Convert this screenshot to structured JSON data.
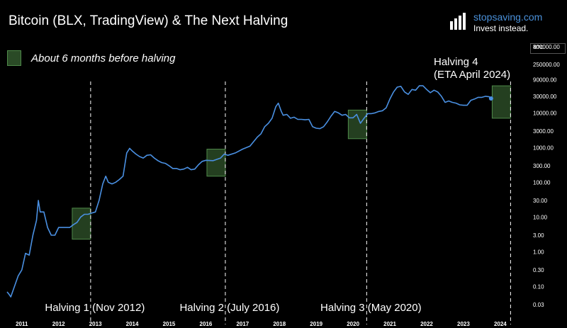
{
  "header": {
    "title": "Bitcoin (BLX, TradingView) & The Next Halving",
    "brand_name": "stopsaving.com",
    "brand_tagline": "Invest instead."
  },
  "legend": {
    "label": "About 6 months before halving"
  },
  "chart_data": {
    "type": "line",
    "title": "Bitcoin (BLX, TradingView) & The Next Halving",
    "y_scale": "log",
    "ylim": [
      0.03,
      800000
    ],
    "xlim": [
      2010.6,
      2024.6
    ],
    "unit_label": "BTC",
    "y_ticks": [
      {
        "value": 800000,
        "label": "800000.00"
      },
      {
        "value": 250000,
        "label": "250000.00"
      },
      {
        "value": 90000,
        "label": "90000.00"
      },
      {
        "value": 30000,
        "label": "30000.00"
      },
      {
        "value": 10000,
        "label": "10000.00"
      },
      {
        "value": 3000,
        "label": "3000.00"
      },
      {
        "value": 1000,
        "label": "1000.00"
      },
      {
        "value": 300,
        "label": "300.00"
      },
      {
        "value": 100,
        "label": "100.00"
      },
      {
        "value": 30,
        "label": "30.00"
      },
      {
        "value": 10,
        "label": "10.00"
      },
      {
        "value": 3,
        "label": "3.00"
      },
      {
        "value": 1,
        "label": "1.00"
      },
      {
        "value": 0.3,
        "label": "0.30"
      },
      {
        "value": 0.1,
        "label": "0.10"
      },
      {
        "value": 0.03,
        "label": "0.03"
      }
    ],
    "x_ticks": [
      {
        "value": 2011,
        "label": "2011"
      },
      {
        "value": 2012,
        "label": "2012"
      },
      {
        "value": 2013,
        "label": "2013"
      },
      {
        "value": 2014,
        "label": "2014"
      },
      {
        "value": 2015,
        "label": "2015"
      },
      {
        "value": 2016,
        "label": "2016"
      },
      {
        "value": 2017,
        "label": "2017"
      },
      {
        "value": 2018,
        "label": "2018"
      },
      {
        "value": 2019,
        "label": "2019"
      },
      {
        "value": 2020,
        "label": "2020"
      },
      {
        "value": 2021,
        "label": "2021"
      },
      {
        "value": 2022,
        "label": "2022"
      },
      {
        "value": 2023,
        "label": "2023"
      },
      {
        "value": 2024,
        "label": "2024"
      }
    ],
    "series": [
      {
        "x": [
          2010.6,
          2010.65,
          2010.7,
          2010.8,
          2010.9,
          2011.0,
          2011.1,
          2011.2,
          2011.3,
          2011.4,
          2011.45,
          2011.5,
          2011.6,
          2011.7,
          2011.8,
          2011.9,
          2012.0,
          2012.1,
          2012.2,
          2012.3,
          2012.4,
          2012.5,
          2012.6,
          2012.7,
          2012.8,
          2012.9,
          2013.0,
          2013.1,
          2013.2,
          2013.28,
          2013.35,
          2013.45,
          2013.55,
          2013.65,
          2013.75,
          2013.85,
          2013.93,
          2014.0,
          2014.1,
          2014.2,
          2014.3,
          2014.4,
          2014.5,
          2014.6,
          2014.7,
          2014.8,
          2014.9,
          2015.0,
          2015.1,
          2015.2,
          2015.3,
          2015.4,
          2015.5,
          2015.6,
          2015.7,
          2015.8,
          2015.9,
          2016.0,
          2016.2,
          2016.4,
          2016.5,
          2016.6,
          2016.8,
          2017.0,
          2017.2,
          2017.4,
          2017.5,
          2017.6,
          2017.7,
          2017.8,
          2017.9,
          2017.97,
          2018.05,
          2018.1,
          2018.2,
          2018.3,
          2018.4,
          2018.5,
          2018.6,
          2018.7,
          2018.8,
          2018.9,
          2019.0,
          2019.1,
          2019.2,
          2019.3,
          2019.4,
          2019.5,
          2019.6,
          2019.7,
          2019.8,
          2019.9,
          2020.0,
          2020.1,
          2020.2,
          2020.3,
          2020.4,
          2020.5,
          2020.6,
          2020.7,
          2020.8,
          2020.9,
          2021.0,
          2021.1,
          2021.2,
          2021.3,
          2021.4,
          2021.5,
          2021.6,
          2021.7,
          2021.8,
          2021.9,
          2022.0,
          2022.1,
          2022.2,
          2022.3,
          2022.4,
          2022.5,
          2022.6,
          2022.7,
          2022.8,
          2022.9,
          2023.0,
          2023.1,
          2023.2,
          2023.3,
          2023.4,
          2023.5,
          2023.6,
          2023.7,
          2023.75
        ],
        "y": [
          0.07,
          0.06,
          0.05,
          0.1,
          0.2,
          0.3,
          0.9,
          0.8,
          3,
          8,
          30,
          14,
          14,
          5,
          3,
          3,
          5,
          5,
          5,
          5,
          6,
          7,
          10,
          12,
          12,
          13,
          14,
          30,
          90,
          150,
          100,
          90,
          100,
          120,
          150,
          700,
          950,
          800,
          650,
          550,
          500,
          600,
          620,
          500,
          420,
          370,
          350,
          300,
          250,
          250,
          230,
          240,
          270,
          230,
          240,
          320,
          400,
          430,
          420,
          500,
          650,
          600,
          700,
          900,
          1100,
          2000,
          2500,
          4000,
          5000,
          7000,
          15000,
          19000,
          11000,
          8500,
          9000,
          7000,
          7500,
          6500,
          6500,
          6300,
          6500,
          4000,
          3600,
          3500,
          4000,
          5500,
          8000,
          11000,
          10000,
          8500,
          9000,
          7200,
          7200,
          9000,
          5000,
          7000,
          9500,
          9500,
          10000,
          11000,
          11500,
          14000,
          25000,
          40000,
          55000,
          58000,
          40000,
          34000,
          47000,
          45000,
          60000,
          60000,
          47000,
          38000,
          45000,
          40000,
          30000,
          20000,
          22000,
          20000,
          19000,
          17000,
          16500,
          16500,
          23000,
          25000,
          28000,
          28000,
          30000,
          29000,
          26000
        ]
      }
    ],
    "shaded_regions": [
      {
        "x0": 2012.37,
        "x1": 2012.87,
        "y0": 2.3,
        "y1": 18
      },
      {
        "x0": 2016.03,
        "x1": 2016.53,
        "y0": 150,
        "y1": 900
      },
      {
        "x0": 2019.87,
        "x1": 2020.37,
        "y0": 1800,
        "y1": 12000
      },
      {
        "x0": 2023.78,
        "x1": 2024.28,
        "y0": 7000,
        "y1": 60000
      }
    ],
    "halving_lines": [
      {
        "x": 2012.87,
        "label": "Halving 1 (Nov 2012)"
      },
      {
        "x": 2016.53,
        "label": "Halving 2 (July 2016)"
      },
      {
        "x": 2020.37,
        "label": "Halving 3 (May 2020)"
      },
      {
        "x": 2024.28,
        "label": ""
      }
    ],
    "annotation": {
      "line1": "Halving 4",
      "line2": "(ETA April 2024)"
    },
    "colors": {
      "line": "#4a90e2",
      "region_fill": "#2a4a26",
      "region_stroke": "#4f8a4a",
      "halving_line": "#ffffff",
      "axis_text": "#ffffff"
    }
  }
}
